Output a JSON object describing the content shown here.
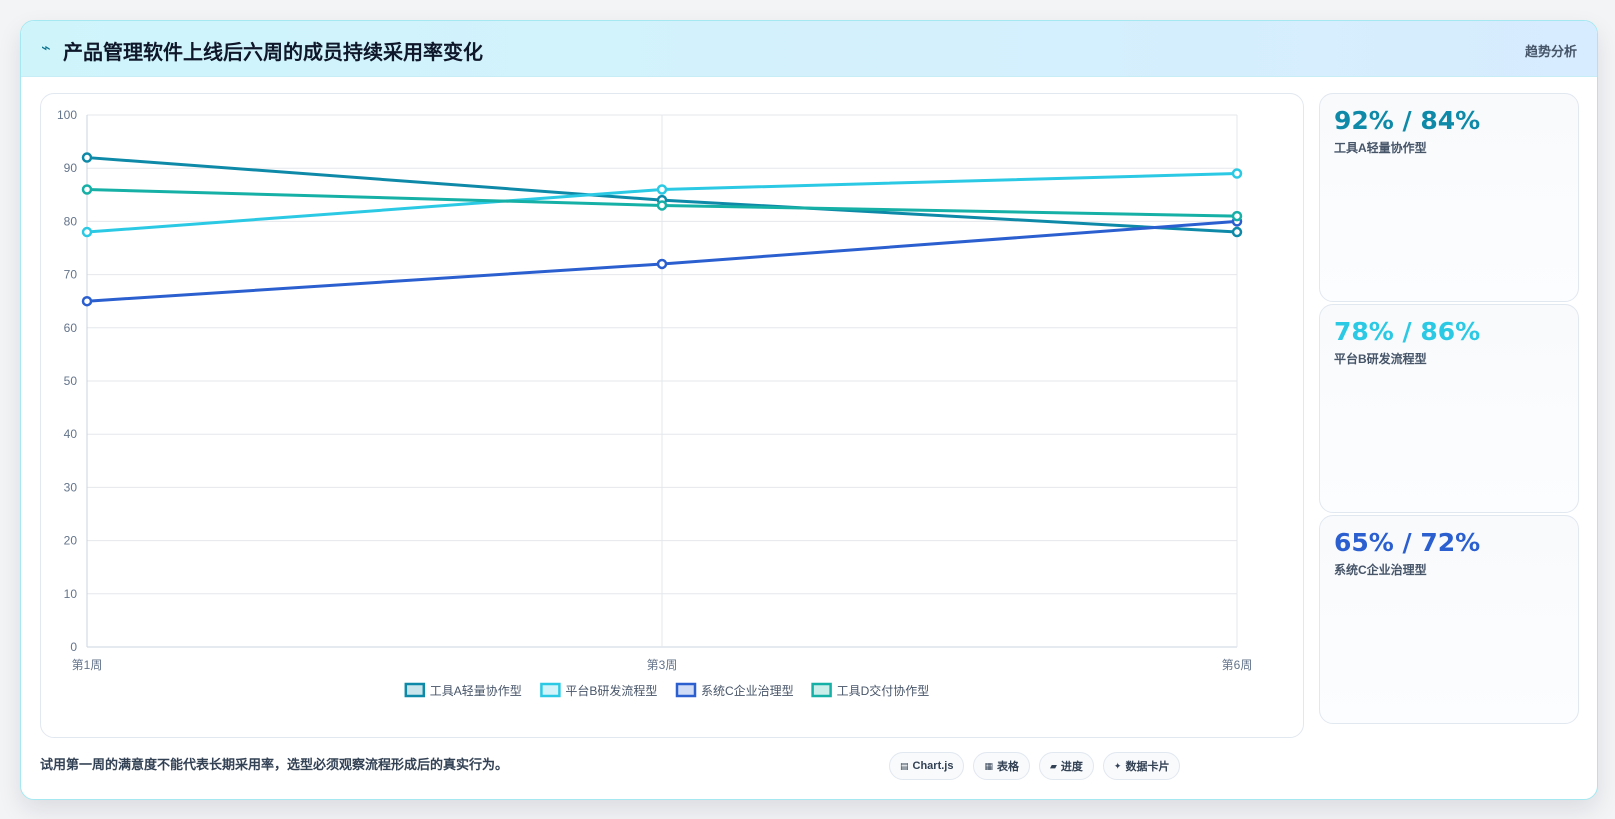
{
  "header": {
    "icon": "trend-line-icon",
    "title": "产品管理软件上线后六周的成员持续采用率变化",
    "tag": "趋势分析"
  },
  "chart_data": {
    "type": "line",
    "categories": [
      "第1周",
      "第3周",
      "第6周"
    ],
    "ylim": [
      0,
      100
    ],
    "yticks": [
      0,
      10,
      20,
      30,
      40,
      50,
      60,
      70,
      80,
      90,
      100
    ],
    "grid": true,
    "legend_position": "bottom",
    "series": [
      {
        "name": "工具A轻量协作型",
        "color": "#0e8aa8",
        "values": [
          92,
          84,
          78
        ]
      },
      {
        "name": "平台B研发流程型",
        "color": "#2cc9e4",
        "values": [
          78,
          86,
          89
        ]
      },
      {
        "name": "系统C企业治理型",
        "color": "#2b5fd0",
        "values": [
          65,
          72,
          80
        ]
      },
      {
        "name": "工具D交付协作型",
        "color": "#16b0a6",
        "values": [
          86,
          83,
          81
        ]
      }
    ]
  },
  "stats": [
    {
      "value": "92% / 84%",
      "label": "工具A轻量协作型",
      "color": "#0e8aa8"
    },
    {
      "value": "78% / 86%",
      "label": "平台B研发流程型",
      "color": "#2cc9e4"
    },
    {
      "value": "65% / 72%",
      "label": "系统C企业治理型",
      "color": "#2b5fd0"
    }
  ],
  "footer": {
    "note": "试用第一周的满意度不能代表长期采用率，选型必须观察流程形成后的真实行为。",
    "chips": [
      {
        "icon": "▤",
        "label": "Chart.js"
      },
      {
        "icon": "▦",
        "label": "表格"
      },
      {
        "icon": "▰",
        "label": "进度"
      },
      {
        "icon": "✦",
        "label": "数据卡片"
      }
    ]
  }
}
